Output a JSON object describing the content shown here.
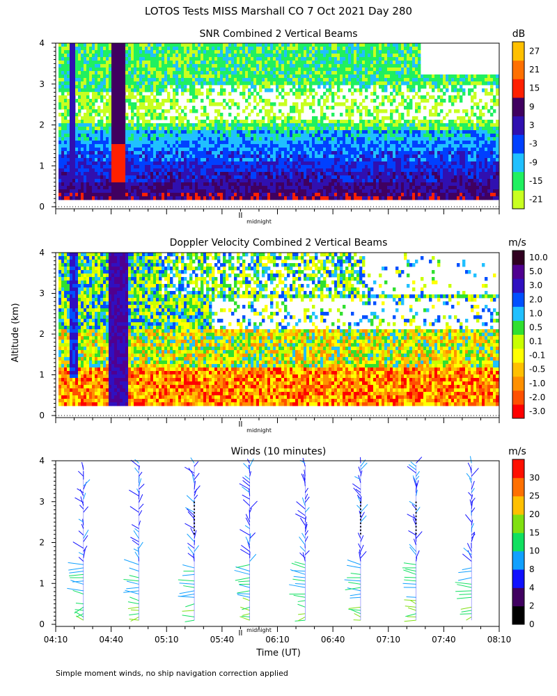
{
  "page_title": "LOTOS Tests MISS Marshall CO   7 Oct 2021 Day 280",
  "y_axis_label": "Altitude (km)",
  "x_axis_label": "Time (UT)",
  "footnote": "Simple moment winds, no ship navigation correction applied",
  "midnight_label": "midnight",
  "colors": {
    "snr_scale": [
      "#c8ff20",
      "#20f060",
      "#20c0ff",
      "#0040ff",
      "#3010b0",
      "#400060",
      "#ff2000",
      "#ff7000",
      "#ffc000"
    ],
    "vel_scale": [
      "#ff0000",
      "#ff5000",
      "#ff9000",
      "#ffc000",
      "#ffff00",
      "#c8ff00",
      "#30e030",
      "#20c0ff",
      "#0050ff",
      "#3010c0",
      "#500090",
      "#300020"
    ],
    "wind_scale": [
      "#000000",
      "#400060",
      "#1010ff",
      "#10a0ff",
      "#10e060",
      "#80e010",
      "#ffc000",
      "#ff7000",
      "#ff1000"
    ]
  },
  "chart_data": [
    {
      "type": "heatmap",
      "title": "SNR Combined 2 Vertical Beams",
      "xlabel": "",
      "ylabel": "Altitude (km)",
      "unit": "dB",
      "ylim": [
        0,
        4
      ],
      "yticks": [
        "0",
        "1",
        "2",
        "3",
        "4"
      ],
      "colorbar_ticks": [
        "-21",
        "-15",
        "-9",
        "-3",
        "3",
        "9",
        "15",
        "21",
        "27"
      ],
      "profile_altitude_km": [
        0.25,
        0.5,
        0.75,
        1.0,
        1.25,
        1.5,
        1.75,
        2.0,
        2.25,
        2.5,
        2.75,
        3.0,
        3.25,
        3.5,
        3.75,
        4.0
      ],
      "profile_snr_db": [
        9,
        6,
        3,
        0,
        -3,
        -6,
        -9,
        -15,
        -21,
        -21,
        -21,
        -15,
        -15,
        -15,
        -15,
        -15
      ]
    },
    {
      "type": "heatmap",
      "title": "Doppler Velocity Combined 2 Vertical Beams",
      "xlabel": "",
      "ylabel": "Altitude (km)",
      "unit": "m/s",
      "ylim": [
        0,
        4
      ],
      "yticks": [
        "0",
        "1",
        "2",
        "3",
        "4"
      ],
      "colorbar_ticks": [
        "-3.0",
        "-2.0",
        "-1.0",
        "-0.5",
        "-0.1",
        "0.1",
        "0.5",
        "1.0",
        "2.0",
        "3.0",
        "5.0",
        "10.0"
      ]
    },
    {
      "type": "scatter",
      "title": "Winds (10 minutes)",
      "xlabel": "Time (UT)",
      "ylabel": "Altitude (km)",
      "unit": "m/s",
      "ylim": [
        0,
        4
      ],
      "yticks": [
        "0",
        "1",
        "2",
        "3",
        "4"
      ],
      "xticks": [
        "04:10",
        "04:40",
        "05:10",
        "05:40",
        "06:10",
        "06:40",
        "07:10",
        "07:40",
        "08:10"
      ],
      "x_range": [
        "04:10",
        "08:10"
      ],
      "midnight_time": "05:50",
      "profile_times": [
        "04:25",
        "04:55",
        "05:25",
        "05:55",
        "06:25",
        "06:55",
        "07:25",
        "07:55"
      ],
      "colorbar_ticks": [
        "0",
        "2",
        "4",
        "8",
        "10",
        "15",
        "20",
        "25",
        "30"
      ]
    }
  ]
}
